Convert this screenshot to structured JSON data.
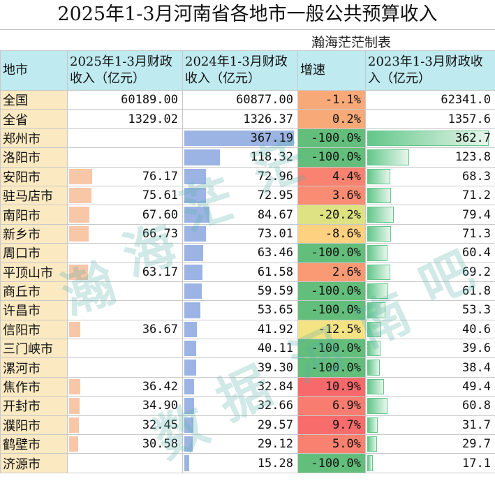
{
  "title": "2025年1-3月河南省各地市一般公共预算收入",
  "credit": "瀚海茫茫制表",
  "headers": {
    "city": "地市",
    "rev2025": "2025年1-3月财政收入（亿元）",
    "rev2024": "2024年1-3月财政收入（亿元）",
    "growth": "增速",
    "rev2023": "2023年1-3月财政收入（亿元）"
  },
  "colors": {
    "bar2025": "#f8c7a8",
    "bar2024": "#9bb4e3",
    "bar2023": "#63c78a",
    "header_bg": "#bfeaf0",
    "name_bg": "#fbe9c2"
  },
  "rows": [
    {
      "name": "全国",
      "rev2025": "60189.00",
      "rev2024": "60877.00",
      "growth": "-1.1%",
      "rev2023": "62341.0",
      "growth_color": "#f8a978",
      "bar2025": 0,
      "bar2024": 0,
      "bar2023": 0
    },
    {
      "name": "全省",
      "rev2025": "1329.02",
      "rev2024": "1326.37",
      "growth": "0.2%",
      "rev2023": "1357.6",
      "growth_color": "#f8a978",
      "bar2025": 0,
      "bar2024": 0,
      "bar2023": 0
    },
    {
      "name": "郑州市",
      "rev2025": "",
      "rev2024": "367.19",
      "growth": "-100.0%",
      "rev2023": "362.7",
      "growth_color": "#63be7b",
      "bar2025": 0,
      "bar2024": 367.19,
      "bar2023": 362.7
    },
    {
      "name": "洛阳市",
      "rev2025": "",
      "rev2024": "118.32",
      "growth": "-100.0%",
      "rev2023": "123.8",
      "growth_color": "#63be7b",
      "bar2025": 0,
      "bar2024": 118.32,
      "bar2023": 123.8
    },
    {
      "name": "安阳市",
      "rev2025": "76.17",
      "rev2024": "72.96",
      "growth": "4.4%",
      "rev2023": "68.3",
      "growth_color": "#f98370",
      "bar2025": 76.17,
      "bar2024": 72.96,
      "bar2023": 68.3
    },
    {
      "name": "驻马店市",
      "rev2025": "75.61",
      "rev2024": "72.95",
      "growth": "3.6%",
      "rev2023": "71.2",
      "growth_color": "#f98c72",
      "bar2025": 75.61,
      "bar2024": 72.95,
      "bar2023": 71.2
    },
    {
      "name": "南阳市",
      "rev2025": "67.60",
      "rev2024": "84.67",
      "growth": "-20.2%",
      "rev2023": "79.4",
      "growth_color": "#dfe283",
      "bar2025": 67.6,
      "bar2024": 84.67,
      "bar2023": 79.4
    },
    {
      "name": "新乡市",
      "rev2025": "66.73",
      "rev2024": "73.01",
      "growth": "-8.6%",
      "rev2023": "71.3",
      "growth_color": "#fdd17f",
      "bar2025": 66.73,
      "bar2024": 73.01,
      "bar2023": 71.3
    },
    {
      "name": "周口市",
      "rev2025": "",
      "rev2024": "63.46",
      "growth": "-100.0%",
      "rev2023": "60.4",
      "growth_color": "#63be7b",
      "bar2025": 0,
      "bar2024": 63.46,
      "bar2023": 60.4
    },
    {
      "name": "平顶山市",
      "rev2025": "63.17",
      "rev2024": "61.58",
      "growth": "2.6%",
      "rev2023": "69.2",
      "growth_color": "#fa9a75",
      "bar2025": 63.17,
      "bar2024": 61.58,
      "bar2023": 69.2
    },
    {
      "name": "商丘市",
      "rev2025": "",
      "rev2024": "59.59",
      "growth": "-100.0%",
      "rev2023": "61.8",
      "growth_color": "#63be7b",
      "bar2025": 0,
      "bar2024": 59.59,
      "bar2023": 61.8
    },
    {
      "name": "许昌市",
      "rev2025": "",
      "rev2024": "53.65",
      "growth": "-100.0%",
      "rev2023": "53.3",
      "growth_color": "#63be7b",
      "bar2025": 0,
      "bar2024": 53.65,
      "bar2023": 53.3
    },
    {
      "name": "信阳市",
      "rev2025": "36.67",
      "rev2024": "41.92",
      "growth": "-12.5%",
      "rev2023": "40.6",
      "growth_color": "#f4e383",
      "bar2025": 36.67,
      "bar2024": 41.92,
      "bar2023": 40.6
    },
    {
      "name": "三门峡市",
      "rev2025": "",
      "rev2024": "40.11",
      "growth": "-100.0%",
      "rev2023": "39.6",
      "growth_color": "#63be7b",
      "bar2025": 0,
      "bar2024": 40.11,
      "bar2023": 39.6
    },
    {
      "name": "漯河市",
      "rev2025": "",
      "rev2024": "39.30",
      "growth": "-100.0%",
      "rev2023": "38.4",
      "growth_color": "#63be7b",
      "bar2025": 0,
      "bar2024": 39.3,
      "bar2023": 38.4
    },
    {
      "name": "焦作市",
      "rev2025": "36.42",
      "rev2024": "32.84",
      "growth": "10.9%",
      "rev2023": "49.4",
      "growth_color": "#f8696b",
      "bar2025": 36.42,
      "bar2024": 32.84,
      "bar2023": 49.4
    },
    {
      "name": "开封市",
      "rev2025": "34.90",
      "rev2024": "32.66",
      "growth": "6.9%",
      "rev2023": "60.8",
      "growth_color": "#f87c6f",
      "bar2025": 34.9,
      "bar2024": 32.66,
      "bar2023": 60.8
    },
    {
      "name": "濮阳市",
      "rev2025": "32.45",
      "rev2024": "29.57",
      "growth": "9.7%",
      "rev2023": "31.7",
      "growth_color": "#f86d6c",
      "bar2025": 32.45,
      "bar2024": 29.57,
      "bar2023": 31.7
    },
    {
      "name": "鹤壁市",
      "rev2025": "30.58",
      "rev2024": "29.12",
      "growth": "5.0%",
      "rev2023": "29.7",
      "growth_color": "#f98170",
      "bar2025": 30.58,
      "bar2024": 29.12,
      "bar2023": 29.7
    },
    {
      "name": "济源市",
      "rev2025": "",
      "rev2024": "15.28",
      "growth": "-100.0%",
      "rev2023": "17.1",
      "growth_color": "#63be7b",
      "bar2025": 0,
      "bar2024": 15.28,
      "bar2023": 17.1
    }
  ],
  "watermarks": [
    "瀚",
    "海",
    "茫",
    "茫",
    "数",
    "据",
    "河",
    "南",
    "吧"
  ]
}
